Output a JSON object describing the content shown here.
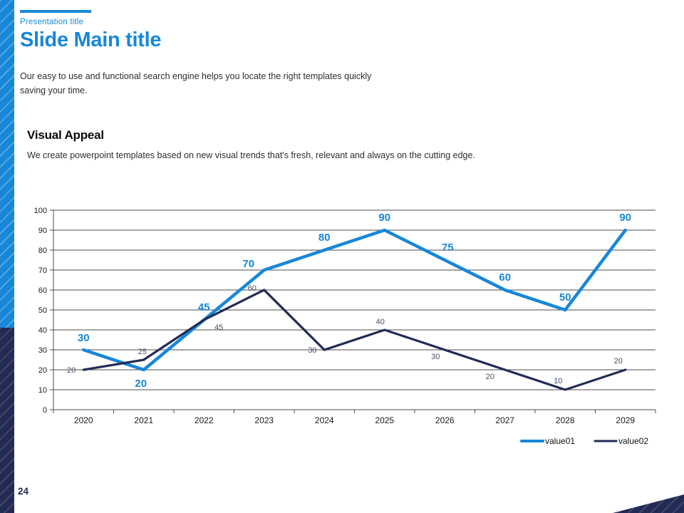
{
  "colors": {
    "accent_blue": "#1787d8",
    "navy": "#232a54",
    "grid": "#4d4d4d",
    "dark_label_gray": "#4a4f66"
  },
  "header": {
    "eyebrow": "Presentation title",
    "title": "Slide Main title",
    "intro_line1": "Our easy to use and functional search engine helps you locate the right templates quickly",
    "intro_line2": "saving your time."
  },
  "section": {
    "heading": "Visual Appeal",
    "body": "We create powerpoint templates based on new visual trends that's fresh, relevant and always on the cutting edge."
  },
  "chart_data": {
    "type": "line",
    "title": "",
    "categories": [
      "2020",
      "2021",
      "2022",
      "2023",
      "2024",
      "2025",
      "2026",
      "2027",
      "2028",
      "2029"
    ],
    "series": [
      {
        "name": "value01",
        "values": [
          30,
          20,
          45,
          70,
          80,
          90,
          75,
          60,
          50,
          90
        ],
        "color": "#1787d8"
      },
      {
        "name": "value02",
        "values": [
          20,
          25,
          45,
          60,
          30,
          40,
          30,
          20,
          10,
          20
        ],
        "color": "#232a54"
      }
    ],
    "ylim": [
      0,
      100
    ],
    "ytick_step": 10,
    "grid": true,
    "data_labels": true,
    "legend_position": "bottom-right",
    "legend": [
      "value01",
      "value02"
    ]
  },
  "footer": {
    "page_number": "24"
  }
}
